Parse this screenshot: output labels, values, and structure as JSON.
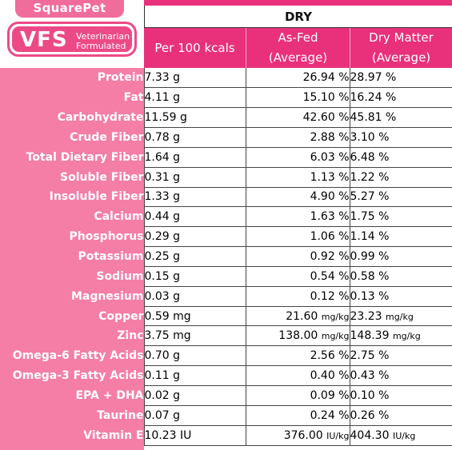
{
  "brand": {
    "name": "SquarePet",
    "badge": "VFS",
    "badge_sub_line1": "Veterinarian",
    "badge_sub_line2": "Formulated"
  },
  "table": {
    "group_header": "DRY",
    "headers": {
      "per100": "Per 100 kcals",
      "asfed_line1": "As-Fed",
      "asfed_line2": "(Average)",
      "dry_line1": "Dry Matter",
      "dry_line2": "(Average)"
    },
    "rows": [
      {
        "nutrient": "Protein",
        "per100": "7.33 g",
        "asfed_val": "26.94",
        "asfed_unit": "%",
        "dry_val": "28.97",
        "dry_unit": "%"
      },
      {
        "nutrient": "Fat",
        "per100": "4.11 g",
        "asfed_val": "15.10",
        "asfed_unit": "%",
        "dry_val": "16.24",
        "dry_unit": "%"
      },
      {
        "nutrient": "Carbohydrate",
        "per100": "11.59 g",
        "asfed_val": "42.60",
        "asfed_unit": "%",
        "dry_val": "45.81",
        "dry_unit": "%"
      },
      {
        "nutrient": "Crude Fiber",
        "per100": "0.78 g",
        "asfed_val": "2.88",
        "asfed_unit": "%",
        "dry_val": "3.10",
        "dry_unit": "%"
      },
      {
        "nutrient": "Total Dietary Fiber",
        "per100": "1.64 g",
        "asfed_val": "6.03",
        "asfed_unit": "%",
        "dry_val": "6.48",
        "dry_unit": "%"
      },
      {
        "nutrient": "Soluble Fiber",
        "per100": "0.31 g",
        "asfed_val": "1.13",
        "asfed_unit": "%",
        "dry_val": "1.22",
        "dry_unit": "%"
      },
      {
        "nutrient": "Insoluble Fiber",
        "per100": "1.33 g",
        "asfed_val": "4.90",
        "asfed_unit": "%",
        "dry_val": "5.27",
        "dry_unit": "%"
      },
      {
        "nutrient": "Calcium",
        "per100": "0.44 g",
        "asfed_val": "1.63",
        "asfed_unit": "%",
        "dry_val": "1.75",
        "dry_unit": "%"
      },
      {
        "nutrient": "Phosphorus",
        "per100": "0.29 g",
        "asfed_val": "1.06",
        "asfed_unit": "%",
        "dry_val": "1.14",
        "dry_unit": "%"
      },
      {
        "nutrient": "Potassium",
        "per100": "0.25 g",
        "asfed_val": "0.92",
        "asfed_unit": "%",
        "dry_val": "0.99",
        "dry_unit": "%"
      },
      {
        "nutrient": "Sodium",
        "per100": "0.15 g",
        "asfed_val": "0.54",
        "asfed_unit": "%",
        "dry_val": "0.58",
        "dry_unit": "%"
      },
      {
        "nutrient": "Magnesium",
        "per100": "0.03 g",
        "asfed_val": "0.12",
        "asfed_unit": "%",
        "dry_val": "0.13",
        "dry_unit": "%"
      },
      {
        "nutrient": "Copper",
        "per100": "0.59 mg",
        "asfed_val": "21.60",
        "asfed_unit": "mg/kg",
        "dry_val": "23.23",
        "dry_unit": "mg/kg"
      },
      {
        "nutrient": "Zinc",
        "per100": "3.75 mg",
        "asfed_val": "138.00",
        "asfed_unit": "mg/kg",
        "dry_val": "148.39",
        "dry_unit": "mg/kg"
      },
      {
        "nutrient": "Omega-6 Fatty Acids",
        "per100": "0.70 g",
        "asfed_val": "2.56",
        "asfed_unit": "%",
        "dry_val": "2.75",
        "dry_unit": "%"
      },
      {
        "nutrient": "Omega-3 Fatty Acids",
        "per100": "0.11 g",
        "asfed_val": "0.40",
        "asfed_unit": "%",
        "dry_val": "0.43",
        "dry_unit": "%"
      },
      {
        "nutrient": "EPA + DHA",
        "per100": "0.02 g",
        "asfed_val": "0.09",
        "asfed_unit": "%",
        "dry_val": "0.10",
        "dry_unit": "%"
      },
      {
        "nutrient": "Taurine",
        "per100": "0.07 g",
        "asfed_val": "0.24",
        "asfed_unit": "%",
        "dry_val": "0.26",
        "dry_unit": "%"
      },
      {
        "nutrient": "Vitamin E",
        "per100": "10.23 IU",
        "asfed_val": "376.00",
        "asfed_unit": "IU/kg",
        "dry_val": "404.30",
        "dry_unit": "IU/kg"
      }
    ]
  },
  "colors": {
    "header_pink": "#e8317a",
    "label_column_pink": "#f47ea6",
    "brand_tab_pink": "#f06c9b"
  }
}
